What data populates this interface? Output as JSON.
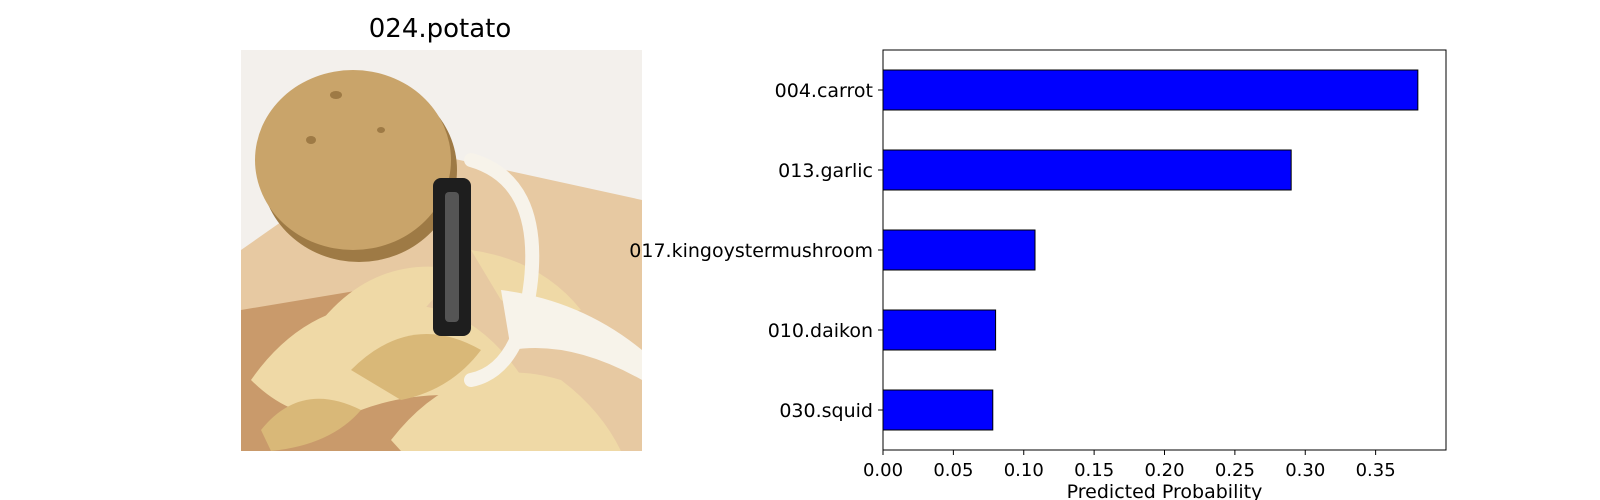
{
  "image_panel": {
    "title": "024.potato",
    "colors": {
      "background": "#f3f0ec",
      "board_light": "#e7c9a2",
      "board_dark": "#c99a6b",
      "potato": "#c9a46a",
      "potato_shadow": "#9e7a45",
      "peel": "#efd9a6",
      "peel_dark": "#d9b878",
      "peeler_handle": "#1e1e1e",
      "peeler_white": "#f7f3ea"
    }
  },
  "chart_data": {
    "type": "bar",
    "orientation": "horizontal",
    "categories": [
      "004.carrot",
      "013.garlic",
      "017.kingoystermushroom",
      "010.daikon",
      "030.squid"
    ],
    "values": [
      0.38,
      0.29,
      0.108,
      0.08,
      0.078
    ],
    "xlabel": "Predicted Probability",
    "ylabel": "",
    "xlim": [
      0,
      0.4
    ],
    "xticks": [
      "0.00",
      "0.05",
      "0.10",
      "0.15",
      "0.20",
      "0.25",
      "0.30",
      "0.35"
    ],
    "grid": false,
    "bar_color": "#0000ff",
    "edge_color": "#000000"
  }
}
